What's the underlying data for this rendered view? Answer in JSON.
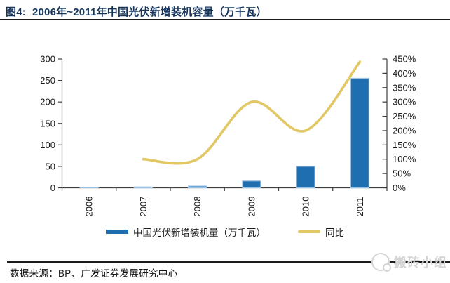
{
  "header": {
    "figure_label": "图4:",
    "title": "2006年~2011年中国光伏新增装机容量（万千瓦）"
  },
  "chart_data": {
    "type": "combo",
    "title": "2006年~2011年中国光伏新增装机容量（万千瓦）",
    "categories": [
      "2006",
      "2007",
      "2008",
      "2009",
      "2010",
      "2011"
    ],
    "series": [
      {
        "name": "中国光伏新增装机量（万千瓦）",
        "chart": "bar",
        "axis": "left",
        "values": [
          1,
          2,
          4,
          16,
          50,
          255
        ]
      },
      {
        "name": "同比",
        "chart": "line",
        "axis": "right",
        "smooth": true,
        "values": [
          null,
          100,
          100,
          300,
          200,
          440
        ]
      }
    ],
    "left_axis": {
      "min": 0,
      "max": 300,
      "step": 50
    },
    "right_axis": {
      "min": 0,
      "max": 450,
      "step": 50,
      "suffix": "%"
    },
    "legend_position": "bottom",
    "grid": false
  },
  "footer": {
    "source": "数据来源：BP、广发证券发展研究中心"
  },
  "watermark": {
    "text": "搬砖小组"
  },
  "colors": {
    "navy": "#17365d",
    "rule": "#1a1a1a",
    "bar_fill": "#1f6fb0",
    "bar_border": "#9cc3e5",
    "line": "#e2c765",
    "axis": "#404040",
    "text": "#1a1a1a",
    "watermark": "#d5d5d5"
  }
}
